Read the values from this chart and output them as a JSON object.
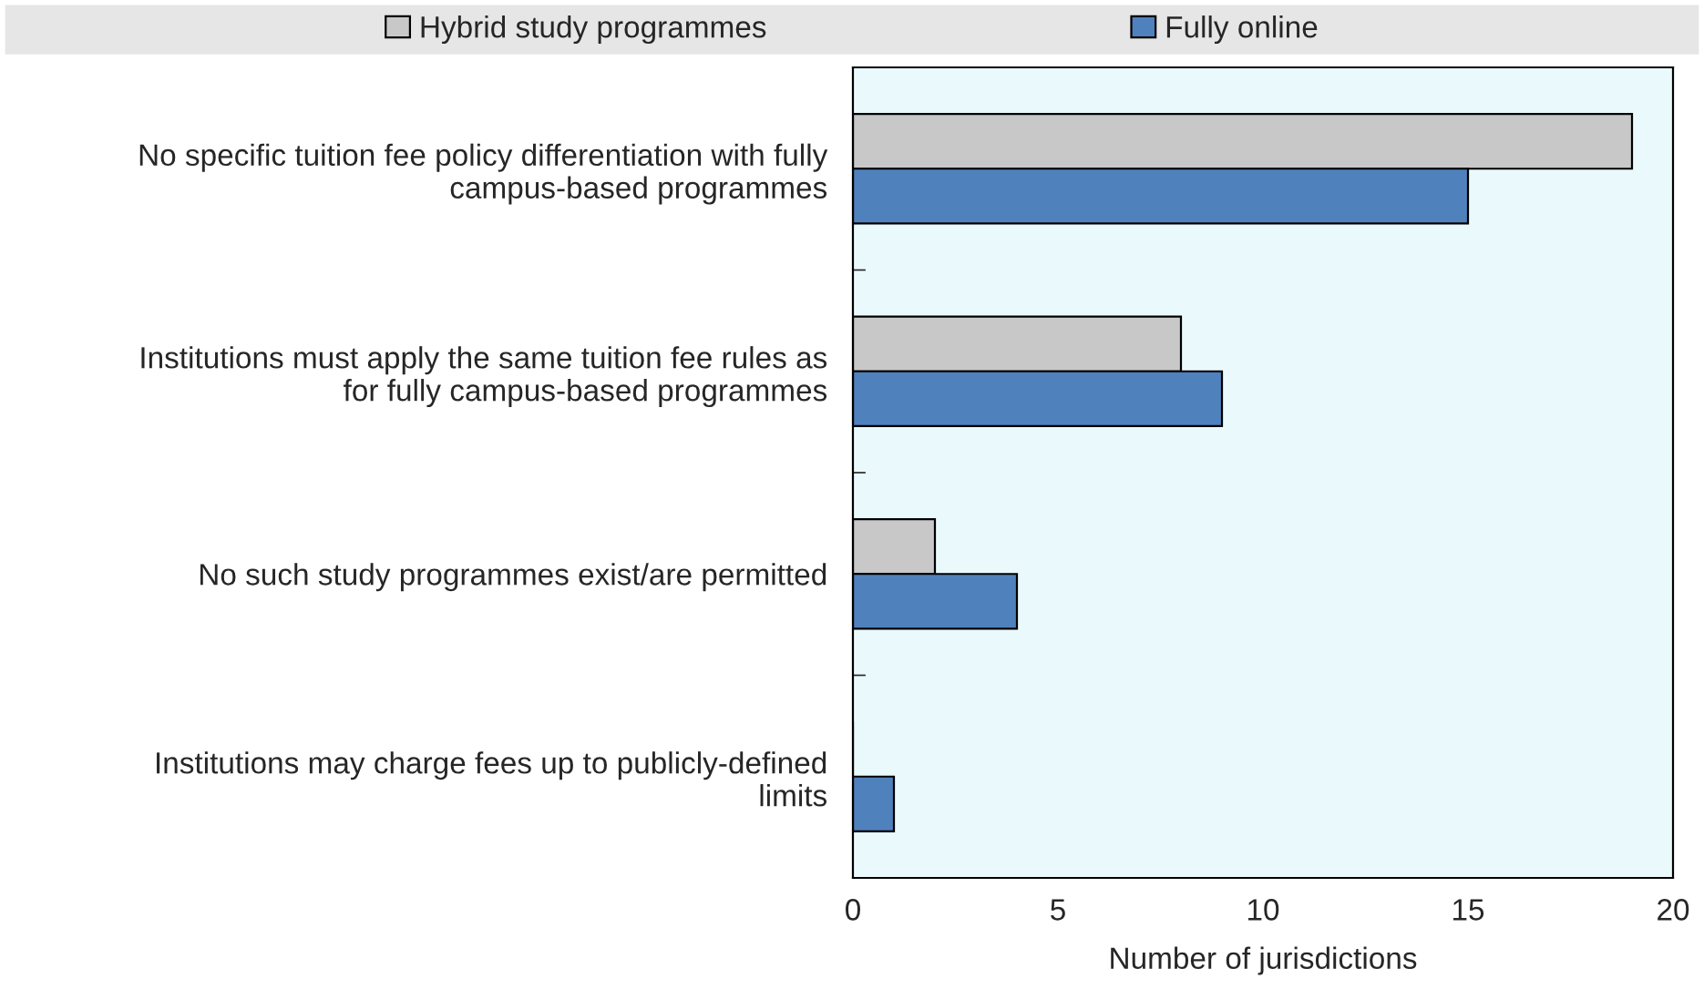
{
  "chart_data": {
    "type": "bar",
    "orientation": "horizontal",
    "xlabel": "Number of jurisdictions",
    "categories": [
      "No specific tuition fee policy differentiation with fully\ncampus-based programmes",
      "Institutions must apply the same tuition fee rules as\nfor fully campus-based programmes",
      "No such study programmes exist/are permitted",
      "Institutions may charge fees up to publicly-defined\nlimits"
    ],
    "series": [
      {
        "name": "Hybrid study programmes",
        "color": "#c8c8c8",
        "values": [
          19,
          8,
          2,
          0
        ]
      },
      {
        "name": "Fully online",
        "color": "#4f81bd",
        "values": [
          15,
          9,
          4,
          1
        ]
      }
    ],
    "xlim": [
      0,
      20
    ],
    "xticks": [
      0,
      5,
      10,
      15,
      20
    ],
    "grid": false,
    "legend": "top"
  }
}
